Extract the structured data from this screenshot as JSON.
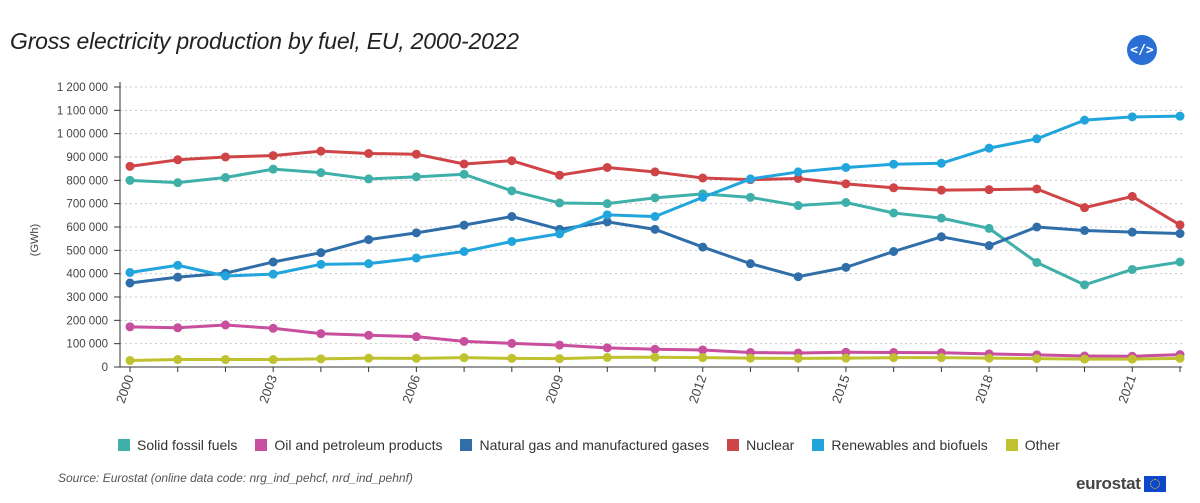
{
  "title": "Gross electricity production by fuel, EU, 2000-2022",
  "embed_label": "</>",
  "source": "Source: Eurostat (online data code: nrg_ind_pehcf, nrd_ind_pehnf)",
  "logo_text": "eurostat",
  "chart_data": {
    "type": "line",
    "title": "Gross electricity production by fuel, EU, 2000-2022",
    "xlabel": "",
    "ylabel": "(GWh)",
    "ylim": [
      0,
      1200000
    ],
    "yticks": [
      0,
      100000,
      200000,
      300000,
      400000,
      500000,
      600000,
      700000,
      800000,
      900000,
      1000000,
      1100000,
      1200000
    ],
    "ytick_labels": [
      "0",
      "100 000",
      "200 000",
      "300 000",
      "400 000",
      "500 000",
      "600 000",
      "700 000",
      "800 000",
      "900 000",
      "1 000 000",
      "1 100 000",
      "1 200 000"
    ],
    "x": [
      2000,
      2001,
      2002,
      2003,
      2004,
      2005,
      2006,
      2007,
      2008,
      2009,
      2010,
      2011,
      2012,
      2013,
      2014,
      2015,
      2016,
      2017,
      2018,
      2019,
      2020,
      2021,
      2022
    ],
    "xtick_labels": [
      "2000",
      "2003",
      "2006",
      "2009",
      "2012",
      "2015",
      "2018",
      "2021"
    ],
    "grid": true,
    "legend_position": "bottom",
    "series": [
      {
        "name": "Solid fossil fuels",
        "color": "#3fb0a9",
        "values": [
          800000,
          790000,
          812000,
          848000,
          833000,
          806000,
          815000,
          826000,
          755000,
          703000,
          700000,
          725000,
          742000,
          727000,
          692000,
          705000,
          660000,
          638000,
          594000,
          448000,
          352000,
          418000,
          450000
        ]
      },
      {
        "name": "Oil and petroleum products",
        "color": "#c84e9e",
        "values": [
          172000,
          168000,
          180000,
          166000,
          143000,
          136000,
          130000,
          110000,
          101000,
          94000,
          82000,
          76000,
          73000,
          62000,
          60000,
          63000,
          62000,
          61000,
          56000,
          52000,
          47000,
          46000,
          53000
        ]
      },
      {
        "name": "Natural gas and manufactured gases",
        "color": "#2f6ea8",
        "values": [
          360000,
          385000,
          402000,
          450000,
          490000,
          546000,
          575000,
          608000,
          645000,
          590000,
          622000,
          590000,
          514000,
          443000,
          387000,
          427000,
          495000,
          558000,
          520000,
          600000,
          585000,
          578000,
          572000
        ]
      },
      {
        "name": "Nuclear",
        "color": "#cf4447",
        "values": [
          860000,
          888000,
          900000,
          906000,
          925000,
          915000,
          912000,
          870000,
          884000,
          822000,
          855000,
          836000,
          810000,
          803000,
          808000,
          785000,
          768000,
          758000,
          760000,
          763000,
          683000,
          731000,
          609000
        ]
      },
      {
        "name": "Renewables and biofuels",
        "color": "#21a5dc",
        "values": [
          405000,
          436000,
          390000,
          398000,
          440000,
          443000,
          467000,
          495000,
          538000,
          571000,
          652000,
          645000,
          727000,
          806000,
          836000,
          855000,
          869000,
          873000,
          938000,
          978000,
          1058000,
          1072000,
          1075000
        ]
      },
      {
        "name": "Other",
        "color": "#bfc12e",
        "values": [
          28000,
          32000,
          32000,
          32000,
          35000,
          38000,
          37000,
          40000,
          37000,
          36000,
          41000,
          42000,
          40000,
          38000,
          37000,
          38000,
          40000,
          40000,
          38000,
          36000,
          34000,
          34000,
          37000
        ]
      }
    ]
  }
}
